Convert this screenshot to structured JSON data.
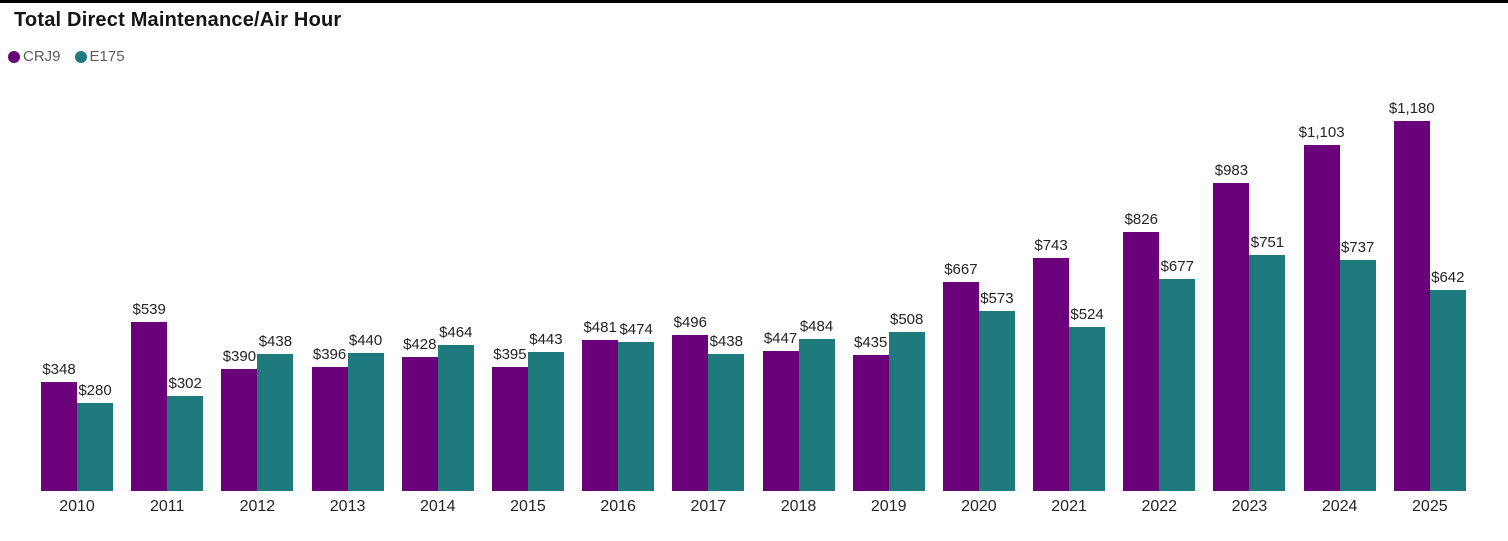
{
  "title": "Total Direct Maintenance/Air Hour",
  "legend": [
    {
      "label": "CRJ9",
      "color": "#6B007B"
    },
    {
      "label": "E175",
      "color": "#1E7A7D"
    }
  ],
  "colors": {
    "crj9": "#6B007B",
    "e175": "#1E7A7D",
    "text_primary": "#252423",
    "text_secondary": "#5F5D5B",
    "top_border": "#000000",
    "background": "#FFFFFF"
  },
  "chart_data": {
    "type": "bar",
    "title": "Total Direct Maintenance/Air Hour",
    "categories": [
      "2010",
      "2011",
      "2012",
      "2013",
      "2014",
      "2015",
      "2016",
      "2017",
      "2018",
      "2019",
      "2020",
      "2021",
      "2022",
      "2023",
      "2024",
      "2025"
    ],
    "series": [
      {
        "name": "CRJ9",
        "color": "#6B007B",
        "values": [
          348,
          539,
          390,
          396,
          428,
          395,
          481,
          496,
          447,
          435,
          667,
          743,
          826,
          983,
          1103,
          1180
        ]
      },
      {
        "name": "E175",
        "color": "#1E7A7D",
        "values": [
          280,
          302,
          438,
          440,
          464,
          443,
          474,
          438,
          484,
          508,
          573,
          524,
          677,
          751,
          737,
          642
        ]
      }
    ],
    "value_prefix": "$",
    "data_labels": true,
    "xlabel": "",
    "ylabel": "",
    "ylim": [
      0,
      1275
    ],
    "grid": false,
    "legend_position": "top-left"
  }
}
